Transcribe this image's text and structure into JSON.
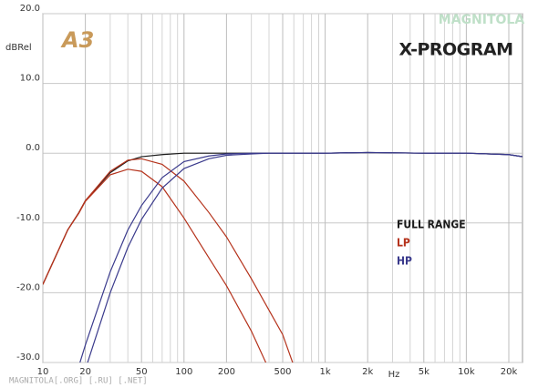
{
  "chart_data": {
    "type": "line",
    "title": "X-PROGRAM",
    "logo": "A3",
    "watermark": "MAGNITOLA",
    "footer": "MAGNITOLA[.ORG] [.RU] [.NET]",
    "y_label": "dBRel",
    "x_label": "Hz",
    "x_log": true,
    "grid": true,
    "xlim": [
      10,
      25000
    ],
    "ylim": [
      -30,
      20
    ],
    "xticks": [
      10,
      20,
      50,
      100,
      200,
      500,
      {
        "value": 1000,
        "label": "1k"
      },
      {
        "value": 2000,
        "label": "2k"
      },
      {
        "value": 5000,
        "label": "5k"
      },
      {
        "value": 10000,
        "label": "10k"
      },
      {
        "value": 20000,
        "label": "20k"
      }
    ],
    "xminorticks": [
      30,
      40,
      60,
      70,
      80,
      90,
      300,
      400,
      600,
      700,
      800,
      900,
      3000,
      4000,
      6000,
      7000,
      8000,
      9000
    ],
    "yticks": [
      {
        "value": 20,
        "label": "20.0"
      },
      {
        "value": 10,
        "label": "10.0"
      },
      {
        "value": 0,
        "label": "0.0"
      },
      {
        "value": -10,
        "label": "-10.0"
      },
      {
        "value": -20,
        "label": "-20.0"
      },
      {
        "value": -30,
        "label": "-30.0"
      }
    ],
    "x": [
      10,
      15,
      18,
      20,
      30,
      40,
      50,
      70,
      100,
      150,
      200,
      300,
      400,
      500,
      600,
      1000,
      2000,
      5000,
      10000,
      20000,
      25000
    ],
    "series": [
      {
        "name": "FULL RANGE",
        "color": "#1a1a1a",
        "values": [
          -18.8,
          -11,
          -8.5,
          -6.8,
          -2.8,
          -1.1,
          -0.5,
          -0.2,
          0,
          0,
          0,
          0,
          0,
          0,
          0,
          0,
          0.1,
          0,
          0,
          -0.2,
          -0.5
        ]
      },
      {
        "name": "LP",
        "color": "#b5331c",
        "values": [
          -18.8,
          -11,
          -8.6,
          -6.9,
          -3.1,
          -2.3,
          -2.6,
          -4.8,
          -9.3,
          -15,
          -19,
          -25.5,
          -31,
          null,
          null,
          null,
          null,
          null,
          null,
          null,
          null
        ]
      },
      {
        "name": "LP",
        "color": "#b5331c",
        "values": [
          -18.8,
          -11,
          -8.5,
          -6.8,
          -2.6,
          -1,
          -0.8,
          -1.6,
          -4,
          -8.5,
          -12,
          -18,
          -22.5,
          -26,
          -30.5,
          null,
          null,
          null,
          null,
          null,
          null
        ]
      },
      {
        "name": "HP",
        "color": "#3a3a8c",
        "values": [
          null,
          null,
          -30.5,
          -27.5,
          -17,
          -11,
          -7.5,
          -3.5,
          -1.2,
          -0.4,
          -0.1,
          0,
          0,
          0,
          0,
          0,
          0.1,
          0,
          0,
          -0.2,
          -0.5
        ]
      },
      {
        "name": "HP",
        "color": "#3a3a8c",
        "values": [
          null,
          null,
          null,
          -31,
          -20,
          -13.5,
          -9.5,
          -5,
          -2.2,
          -0.8,
          -0.3,
          -0.1,
          0,
          0,
          0,
          0,
          0.1,
          0,
          0,
          -0.2,
          -0.5
        ]
      }
    ]
  }
}
